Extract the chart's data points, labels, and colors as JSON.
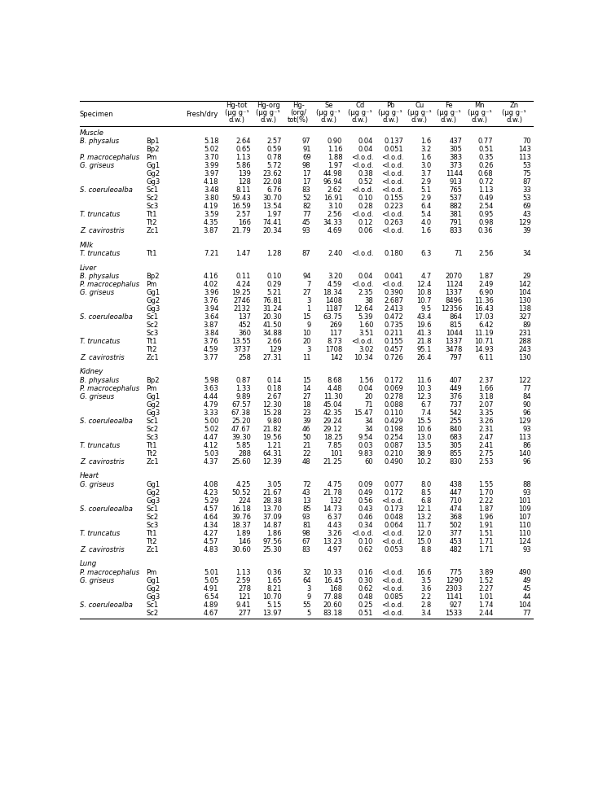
{
  "headers_line1": [
    "Specimen",
    "",
    "Fresh/dry",
    "Hg-tot",
    "Hg-org",
    "Hg-",
    "Se",
    "Cd",
    "Pb",
    "Cu",
    "Fe",
    "Mn",
    "Zn"
  ],
  "headers_line2": [
    "",
    "",
    "",
    "(μg g⁻¹",
    "(μg g⁻¹",
    "org/",
    "(μg g⁻¹",
    "(μg g⁻¹",
    "(μg g⁻¹",
    "(μg g⁻¹",
    "(μg g⁻¹",
    "(μg g⁻¹",
    "(μg g⁻¹"
  ],
  "headers_line3": [
    "",
    "",
    "",
    "d.w.)",
    "d.w.)",
    "tot(%)",
    "d.w.)",
    "d.w.)",
    "d.w.)",
    "d.w.)",
    "d.w.)",
    "d.w.)",
    "d.w.)"
  ],
  "sections": [
    {
      "name": "Muscle",
      "rows": [
        [
          "B. physalus",
          "Bp1",
          "5.18",
          "2.64",
          "2.57",
          "97",
          "0.90",
          "0.04",
          "0.137",
          "1.6",
          "437",
          "0.77",
          "70"
        ],
        [
          "",
          "Bp2",
          "5.02",
          "0.65",
          "0.59",
          "91",
          "1.16",
          "0.04",
          "0.051",
          "3.2",
          "305",
          "0.51",
          "143"
        ],
        [
          "P. macrocephalus",
          "Pm",
          "3.70",
          "1.13",
          "0.78",
          "69",
          "1.88",
          "<l.o.d.",
          "<l.o.d.",
          "1.6",
          "383",
          "0.35",
          "113"
        ],
        [
          "G. griseus",
          "Gg1",
          "3.99",
          "5.86",
          "5.72",
          "98",
          "1.97",
          "<l.o.d.",
          "<l.o.d.",
          "3.0",
          "373",
          "0.26",
          "53"
        ],
        [
          "",
          "Gg2",
          "3.97",
          "139",
          "23.62",
          "17",
          "44.98",
          "0.38",
          "<l.o.d.",
          "3.7",
          "1144",
          "0.68",
          "75"
        ],
        [
          "",
          "Gg3",
          "4.18",
          "128",
          "22.08",
          "17",
          "96.94",
          "0.52",
          "<l.o.d.",
          "2.9",
          "913",
          "0.72",
          "87"
        ],
        [
          "S. coeruleoalba",
          "Sc1",
          "3.48",
          "8.11",
          "6.76",
          "83",
          "2.62",
          "<l.o.d.",
          "<l.o.d.",
          "5.1",
          "765",
          "1.13",
          "33"
        ],
        [
          "",
          "Sc2",
          "3.80",
          "59.43",
          "30.70",
          "52",
          "16.91",
          "0.10",
          "0.155",
          "2.9",
          "537",
          "0.49",
          "53"
        ],
        [
          "",
          "Sc3",
          "4.19",
          "16.59",
          "13.54",
          "82",
          "3.10",
          "0.28",
          "0.223",
          "6.4",
          "882",
          "2.54",
          "69"
        ],
        [
          "T. truncatus",
          "Tt1",
          "3.59",
          "2.57",
          "1.97",
          "77",
          "2.56",
          "<l.o.d.",
          "<l.o.d.",
          "5.4",
          "381",
          "0.95",
          "43"
        ],
        [
          "",
          "Tt2",
          "4.35",
          "166",
          "74.41",
          "45",
          "34.33",
          "0.12",
          "0.263",
          "4.0",
          "791",
          "0.98",
          "129"
        ],
        [
          "Z. cavirostris",
          "Zc1",
          "3.87",
          "21.79",
          "20.34",
          "93",
          "4.69",
          "0.06",
          "<l.o.d.",
          "1.6",
          "833",
          "0.36",
          "39"
        ]
      ]
    },
    {
      "name": "Milk",
      "rows": [
        [
          "T. truncatus",
          "Tt1",
          "7.21",
          "1.47",
          "1.28",
          "87",
          "2.40",
          "<l.o.d.",
          "0.180",
          "6.3",
          "71",
          "2.56",
          "34"
        ]
      ]
    },
    {
      "name": "Liver",
      "rows": [
        [
          "B. physalus",
          "Bp2",
          "4.16",
          "0.11",
          "0.10",
          "94",
          "3.20",
          "0.04",
          "0.041",
          "4.7",
          "2070",
          "1.87",
          "29"
        ],
        [
          "P. macrocephalus",
          "Pm",
          "4.02",
          "4.24",
          "0.29",
          "7",
          "4.59",
          "<l.o.d.",
          "<l.o.d.",
          "12.4",
          "1124",
          "2.49",
          "142"
        ],
        [
          "G. griseus",
          "Gg1",
          "3.96",
          "19.25",
          "5.21",
          "27",
          "18.34",
          "2.35",
          "0.390",
          "10.8",
          "1337",
          "6.90",
          "104"
        ],
        [
          "",
          "Gg2",
          "3.76",
          "2746",
          "76.81",
          "3",
          "1408",
          "38",
          "2.687",
          "10.7",
          "8496",
          "11.36",
          "130"
        ],
        [
          "",
          "Gg3",
          "3.94",
          "2132",
          "31.24",
          "1",
          "1187",
          "12.64",
          "2.413",
          "9.5",
          "12356",
          "16.43",
          "138"
        ],
        [
          "S. coeruleoalba",
          "Sc1",
          "3.64",
          "137",
          "20.30",
          "15",
          "63.75",
          "5.39",
          "0.472",
          "43.4",
          "864",
          "17.03",
          "327"
        ],
        [
          "",
          "Sc2",
          "3.87",
          "452",
          "41.50",
          "9",
          "269",
          "1.60",
          "0.735",
          "19.6",
          "815",
          "6.42",
          "89"
        ],
        [
          "",
          "Sc3",
          "3.84",
          "360",
          "34.88",
          "10",
          "117",
          "3.51",
          "0.211",
          "41.3",
          "1044",
          "11.19",
          "231"
        ],
        [
          "T. truncatus",
          "Tt1",
          "3.76",
          "13.55",
          "2.66",
          "20",
          "8.73",
          "<l.o.d.",
          "0.155",
          "21.8",
          "1337",
          "10.71",
          "288"
        ],
        [
          "",
          "Tt2",
          "4.59",
          "3737",
          "129",
          "3",
          "1708",
          "3.02",
          "0.457",
          "95.1",
          "3478",
          "14.93",
          "243"
        ],
        [
          "Z. cavirostris",
          "Zc1",
          "3.77",
          "258",
          "27.31",
          "11",
          "142",
          "10.34",
          "0.726",
          "26.4",
          "797",
          "6.11",
          "130"
        ]
      ]
    },
    {
      "name": "Kidney",
      "rows": [
        [
          "B. physalus",
          "Bp2",
          "5.98",
          "0.87",
          "0.14",
          "15",
          "8.68",
          "1.56",
          "0.172",
          "11.6",
          "407",
          "2.37",
          "122"
        ],
        [
          "P. macrocephalus",
          "Pm",
          "3.63",
          "1.33",
          "0.18",
          "14",
          "4.48",
          "0.04",
          "0.069",
          "10.3",
          "449",
          "1.66",
          "77"
        ],
        [
          "G. griseus",
          "Gg1",
          "4.44",
          "9.89",
          "2.67",
          "27",
          "11.30",
          "20",
          "0.278",
          "12.3",
          "376",
          "3.18",
          "84"
        ],
        [
          "",
          "Gg2",
          "4.79",
          "67.57",
          "12.30",
          "18",
          "45.04",
          "71",
          "0.088",
          "6.7",
          "737",
          "2.07",
          "90"
        ],
        [
          "",
          "Gg3",
          "3.33",
          "67.38",
          "15.28",
          "23",
          "42.35",
          "15.47",
          "0.110",
          "7.4",
          "542",
          "3.35",
          "96"
        ],
        [
          "S. coeruleoalba",
          "Sc1",
          "5.00",
          "25.20",
          "9.80",
          "39",
          "29.24",
          "34",
          "0.429",
          "15.5",
          "255",
          "3.26",
          "129"
        ],
        [
          "",
          "Sc2",
          "5.02",
          "47.67",
          "21.82",
          "46",
          "29.12",
          "34",
          "0.198",
          "10.6",
          "840",
          "2.31",
          "93"
        ],
        [
          "",
          "Sc3",
          "4.47",
          "39.30",
          "19.56",
          "50",
          "18.25",
          "9.54",
          "0.254",
          "13.0",
          "683",
          "2.47",
          "113"
        ],
        [
          "T. truncatus",
          "Tt1",
          "4.12",
          "5.85",
          "1.21",
          "21",
          "7.85",
          "0.03",
          "0.087",
          "13.5",
          "305",
          "2.41",
          "86"
        ],
        [
          "",
          "Tt2",
          "5.03",
          "288",
          "64.31",
          "22",
          "101",
          "9.83",
          "0.210",
          "38.9",
          "855",
          "2.75",
          "140"
        ],
        [
          "Z. cavirostris",
          "Zc1",
          "4.37",
          "25.60",
          "12.39",
          "48",
          "21.25",
          "60",
          "0.490",
          "10.2",
          "830",
          "2.53",
          "96"
        ]
      ]
    },
    {
      "name": "Heart",
      "rows": [
        [
          "G. griseus",
          "Gg1",
          "4.08",
          "4.25",
          "3.05",
          "72",
          "4.75",
          "0.09",
          "0.077",
          "8.0",
          "438",
          "1.55",
          "88"
        ],
        [
          "",
          "Gg2",
          "4.23",
          "50.52",
          "21.67",
          "43",
          "21.78",
          "0.49",
          "0.172",
          "8.5",
          "447",
          "1.70",
          "93"
        ],
        [
          "",
          "Gg3",
          "5.29",
          "224",
          "28.38",
          "13",
          "132",
          "0.56",
          "<l.o.d.",
          "6.8",
          "710",
          "2.22",
          "101"
        ],
        [
          "S. coeruleoalba",
          "Sc1",
          "4.57",
          "16.18",
          "13.70",
          "85",
          "14.73",
          "0.43",
          "0.173",
          "12.1",
          "474",
          "1.87",
          "109"
        ],
        [
          "",
          "Sc2",
          "4.64",
          "39.76",
          "37.09",
          "93",
          "6.37",
          "0.46",
          "0.048",
          "13.2",
          "368",
          "1.96",
          "107"
        ],
        [
          "",
          "Sc3",
          "4.34",
          "18.37",
          "14.87",
          "81",
          "4.43",
          "0.34",
          "0.064",
          "11.7",
          "502",
          "1.91",
          "110"
        ],
        [
          "T. truncatus",
          "Tt1",
          "4.27",
          "1.89",
          "1.86",
          "98",
          "3.26",
          "<l.o.d.",
          "<l.o.d.",
          "12.0",
          "377",
          "1.51",
          "110"
        ],
        [
          "",
          "Tt2",
          "4.57",
          "146",
          "97.56",
          "67",
          "13.23",
          "0.10",
          "<l.o.d.",
          "15.0",
          "453",
          "1.71",
          "124"
        ],
        [
          "Z. cavirostris",
          "Zc1",
          "4.83",
          "30.60",
          "25.30",
          "83",
          "4.97",
          "0.62",
          "0.053",
          "8.8",
          "482",
          "1.71",
          "93"
        ]
      ]
    },
    {
      "name": "Lung",
      "rows": [
        [
          "P. macrocephalus",
          "Pm",
          "5.01",
          "1.13",
          "0.36",
          "32",
          "10.33",
          "0.16",
          "<l.o.d.",
          "16.6",
          "775",
          "3.89",
          "490"
        ],
        [
          "G. griseus",
          "Gg1",
          "5.05",
          "2.59",
          "1.65",
          "64",
          "16.45",
          "0.30",
          "<l.o.d.",
          "3.5",
          "1290",
          "1.52",
          "49"
        ],
        [
          "",
          "Gg2",
          "4.91",
          "278",
          "8.21",
          "3",
          "168",
          "0.62",
          "<l.o.d.",
          "3.6",
          "2303",
          "2.27",
          "45"
        ],
        [
          "",
          "Gg3",
          "6.54",
          "121",
          "10.70",
          "9",
          "77.88",
          "0.48",
          "0.085",
          "2.2",
          "1141",
          "1.01",
          "44"
        ],
        [
          "S. coeruleoalba",
          "Sc1",
          "4.89",
          "9.41",
          "5.15",
          "55",
          "20.60",
          "0.25",
          "<l.o.d.",
          "2.8",
          "927",
          "1.74",
          "104"
        ],
        [
          "",
          "Sc2",
          "4.67",
          "277",
          "13.97",
          "5",
          "83.18",
          "0.51",
          "<l.o.d.",
          "3.4",
          "1533",
          "2.44",
          "77"
        ]
      ]
    }
  ],
  "font_size": 6.0,
  "section_font_size": 6.2,
  "header_font_size": 6.0
}
